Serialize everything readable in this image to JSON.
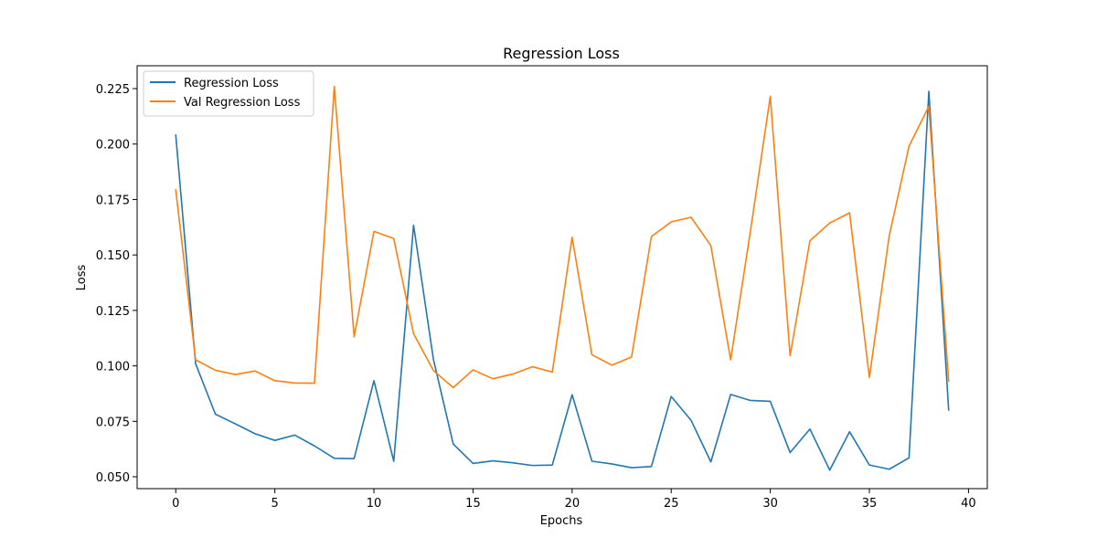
{
  "chart_data": {
    "type": "line",
    "title": "Regression Loss",
    "xlabel": "Epochs",
    "ylabel": "Loss",
    "xlim": [
      -1.95,
      40.95
    ],
    "ylim": [
      0.04465,
      0.2353
    ],
    "x_ticks": [
      0,
      5,
      10,
      15,
      20,
      25,
      30,
      35,
      40
    ],
    "x_tick_labels": [
      "0",
      "5",
      "10",
      "15",
      "20",
      "25",
      "30",
      "35",
      "40"
    ],
    "y_ticks": [
      0.05,
      0.075,
      0.1,
      0.125,
      0.15,
      0.175,
      0.2,
      0.225
    ],
    "y_tick_labels": [
      "0.050",
      "0.075",
      "0.100",
      "0.125",
      "0.150",
      "0.175",
      "0.200",
      "0.225"
    ],
    "grid": false,
    "legend_position": "top-left",
    "x": [
      0,
      1,
      2,
      3,
      4,
      5,
      6,
      7,
      8,
      9,
      10,
      11,
      12,
      13,
      14,
      15,
      16,
      17,
      18,
      19,
      20,
      21,
      22,
      23,
      24,
      25,
      26,
      27,
      28,
      29,
      30,
      31,
      32,
      33,
      34,
      35,
      36,
      37,
      38,
      39
    ],
    "series": [
      {
        "name": "Regression Loss",
        "color": "#1f77b4",
        "values": [
          0.204,
          0.101,
          0.0782,
          0.0739,
          0.0694,
          0.0664,
          0.0688,
          0.0639,
          0.0583,
          0.0582,
          0.0933,
          0.057,
          0.1634,
          0.103,
          0.0648,
          0.056,
          0.0572,
          0.0563,
          0.0551,
          0.0553,
          0.087,
          0.057,
          0.0558,
          0.0541,
          0.0546,
          0.0862,
          0.0755,
          0.0567,
          0.0871,
          0.0844,
          0.084,
          0.0609,
          0.0715,
          0.053,
          0.0703,
          0.0553,
          0.0534,
          0.0585,
          0.2238,
          0.0801
        ]
      },
      {
        "name": "Val Regression Loss",
        "color": "#ff7f0e",
        "values": [
          0.1793,
          0.1027,
          0.098,
          0.0961,
          0.0977,
          0.0933,
          0.0923,
          0.0922,
          0.226,
          0.1131,
          0.1606,
          0.1574,
          0.1145,
          0.0979,
          0.0902,
          0.0982,
          0.0942,
          0.0963,
          0.0996,
          0.0972,
          0.158,
          0.105,
          0.1003,
          0.104,
          0.1583,
          0.1649,
          0.167,
          0.1542,
          0.1027,
          0.1609,
          0.2215,
          0.1046,
          0.1564,
          0.1644,
          0.169,
          0.0948,
          0.1585,
          0.199,
          0.217,
          0.0932
        ]
      }
    ]
  }
}
